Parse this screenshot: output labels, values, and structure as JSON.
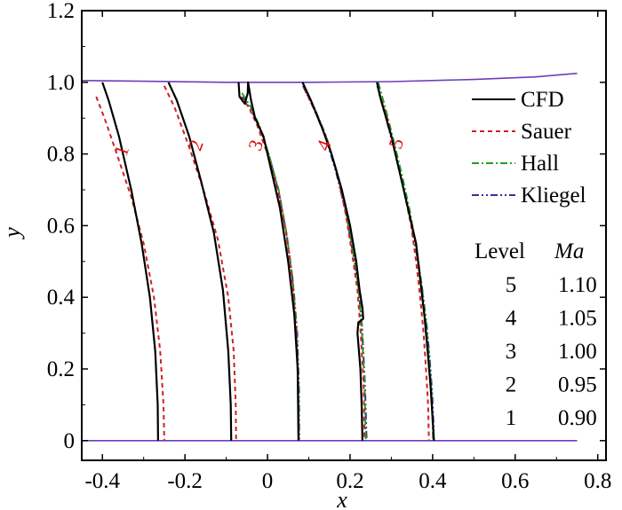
{
  "chart_data": {
    "type": "line",
    "title": "",
    "xlabel": "x",
    "ylabel": "y",
    "xlim": [
      -0.45,
      0.82
    ],
    "ylim": [
      -0.055,
      1.2
    ],
    "xticks": [
      -0.4,
      -0.2,
      0,
      0.2,
      0.4,
      0.6,
      0.8
    ],
    "xtick_labels": [
      "-0.4",
      "-0.2",
      "0",
      "0.2",
      "0.4",
      "0.6",
      "0.8"
    ],
    "yticks": [
      0,
      0.2,
      0.4,
      0.6,
      0.8,
      1.0,
      1.2
    ],
    "ytick_labels": [
      "0",
      "0.2",
      "0.4",
      "0.6",
      "0.8",
      "1.0",
      "1.2"
    ],
    "walls": {
      "color": "#6a3fb8",
      "lower": [
        [
          -0.45,
          0.0
        ],
        [
          0.75,
          0.0
        ]
      ],
      "upper": [
        [
          -0.45,
          1.005
        ],
        [
          -0.3,
          1.003
        ],
        [
          -0.1,
          1.0
        ],
        [
          0.1,
          1.0
        ],
        [
          0.3,
          1.002
        ],
        [
          0.5,
          1.008
        ],
        [
          0.65,
          1.015
        ],
        [
          0.75,
          1.025
        ]
      ]
    },
    "legend": [
      {
        "label": "CFD",
        "color": "#000000",
        "dash": "none"
      },
      {
        "label": "Sauer",
        "color": "#d02020",
        "dash": "5,4"
      },
      {
        "label": "Hall",
        "color": "#20a020",
        "dash": "8,3,2,3"
      },
      {
        "label": "Kliegel",
        "color": "#3030a0",
        "dash": "8,3,2,3,2,3"
      }
    ],
    "level_table": {
      "header_level": "Level",
      "header_value": "Ma",
      "rows": [
        {
          "level": "5",
          "ma": "1.10"
        },
        {
          "level": "4",
          "ma": "1.05"
        },
        {
          "level": "3",
          "ma": "1.00"
        },
        {
          "level": "2",
          "ma": "0.95"
        },
        {
          "level": "1",
          "ma": "0.90"
        }
      ]
    },
    "contour_labels": [
      {
        "text": "1",
        "x": -0.355,
        "y": 0.81
      },
      {
        "text": "2",
        "x": -0.175,
        "y": 0.825
      },
      {
        "text": "3",
        "x": -0.03,
        "y": 0.825
      },
      {
        "text": "4",
        "x": 0.135,
        "y": 0.825
      },
      {
        "text": "5",
        "x": 0.31,
        "y": 0.83
      }
    ],
    "series": [
      {
        "name": "CFD",
        "level": "1",
        "points": [
          [
            -0.4,
            1.0
          ],
          [
            -0.385,
            0.95
          ],
          [
            -0.36,
            0.85
          ],
          [
            -0.33,
            0.7
          ],
          [
            -0.305,
            0.55
          ],
          [
            -0.285,
            0.4
          ],
          [
            -0.272,
            0.25
          ],
          [
            -0.266,
            0.1
          ],
          [
            -0.265,
            0.0
          ]
        ]
      },
      {
        "name": "Sauer",
        "level": "1",
        "points": [
          [
            -0.415,
            0.96
          ],
          [
            -0.395,
            0.9
          ],
          [
            -0.365,
            0.8
          ],
          [
            -0.33,
            0.68
          ],
          [
            -0.3,
            0.55
          ],
          [
            -0.275,
            0.4
          ],
          [
            -0.26,
            0.25
          ],
          [
            -0.252,
            0.1
          ],
          [
            -0.25,
            0.0
          ]
        ]
      },
      {
        "name": "CFD",
        "level": "2",
        "points": [
          [
            -0.24,
            1.0
          ],
          [
            -0.22,
            0.95
          ],
          [
            -0.19,
            0.85
          ],
          [
            -0.16,
            0.72
          ],
          [
            -0.13,
            0.58
          ],
          [
            -0.108,
            0.42
          ],
          [
            -0.095,
            0.25
          ],
          [
            -0.089,
            0.1
          ],
          [
            -0.088,
            0.0
          ]
        ]
      },
      {
        "name": "Sauer",
        "level": "2",
        "points": [
          [
            -0.25,
            0.99
          ],
          [
            -0.225,
            0.93
          ],
          [
            -0.19,
            0.82
          ],
          [
            -0.155,
            0.7
          ],
          [
            -0.12,
            0.56
          ],
          [
            -0.095,
            0.4
          ],
          [
            -0.082,
            0.25
          ],
          [
            -0.077,
            0.1
          ],
          [
            -0.076,
            0.0
          ]
        ]
      },
      {
        "name": "CFD",
        "level": "3",
        "points": [
          [
            -0.07,
            1.0
          ],
          [
            -0.068,
            0.96
          ],
          [
            -0.055,
            0.94
          ],
          [
            -0.048,
            0.97
          ],
          [
            -0.047,
            1.0
          ],
          [
            -0.04,
            0.95
          ],
          [
            -0.03,
            0.9
          ],
          [
            -0.01,
            0.85
          ],
          [
            0.01,
            0.75
          ],
          [
            0.03,
            0.65
          ],
          [
            0.05,
            0.5
          ],
          [
            0.065,
            0.35
          ],
          [
            0.073,
            0.2
          ],
          [
            0.075,
            0.0
          ]
        ]
      },
      {
        "name": "Sauer",
        "level": "3",
        "points": [
          [
            -0.065,
            0.96
          ],
          [
            -0.045,
            0.93
          ],
          [
            -0.025,
            0.88
          ],
          [
            0.0,
            0.8
          ],
          [
            0.025,
            0.7
          ],
          [
            0.045,
            0.58
          ],
          [
            0.06,
            0.45
          ],
          [
            0.07,
            0.3
          ],
          [
            0.074,
            0.15
          ],
          [
            0.075,
            0.0
          ]
        ]
      },
      {
        "name": "Hall",
        "level": "3",
        "points": [
          [
            -0.062,
            0.97
          ],
          [
            -0.04,
            0.93
          ],
          [
            -0.02,
            0.88
          ],
          [
            0.003,
            0.8
          ],
          [
            0.027,
            0.7
          ],
          [
            0.046,
            0.58
          ],
          [
            0.061,
            0.45
          ],
          [
            0.071,
            0.3
          ],
          [
            0.075,
            0.15
          ],
          [
            0.076,
            0.0
          ]
        ]
      },
      {
        "name": "Kliegel",
        "level": "3",
        "points": [
          [
            -0.06,
            0.96
          ],
          [
            -0.038,
            0.92
          ],
          [
            -0.018,
            0.87
          ],
          [
            0.005,
            0.79
          ],
          [
            0.028,
            0.69
          ],
          [
            0.047,
            0.57
          ],
          [
            0.062,
            0.44
          ],
          [
            0.072,
            0.3
          ],
          [
            0.076,
            0.15
          ],
          [
            0.077,
            0.0
          ]
        ]
      },
      {
        "name": "CFD",
        "level": "4",
        "points": [
          [
            0.085,
            1.0
          ],
          [
            0.105,
            0.95
          ],
          [
            0.13,
            0.88
          ],
          [
            0.155,
            0.8
          ],
          [
            0.18,
            0.7
          ],
          [
            0.2,
            0.6
          ],
          [
            0.215,
            0.5
          ],
          [
            0.223,
            0.42
          ],
          [
            0.23,
            0.37
          ],
          [
            0.232,
            0.34
          ],
          [
            0.22,
            0.33
          ],
          [
            0.218,
            0.3
          ],
          [
            0.225,
            0.2
          ],
          [
            0.228,
            0.1
          ],
          [
            0.23,
            0.0
          ]
        ]
      },
      {
        "name": "Sauer",
        "level": "4",
        "points": [
          [
            0.09,
            0.98
          ],
          [
            0.115,
            0.92
          ],
          [
            0.145,
            0.84
          ],
          [
            0.17,
            0.74
          ],
          [
            0.19,
            0.63
          ],
          [
            0.205,
            0.52
          ],
          [
            0.218,
            0.42
          ],
          [
            0.226,
            0.3
          ],
          [
            0.233,
            0.15
          ],
          [
            0.235,
            0.0
          ]
        ]
      },
      {
        "name": "Hall",
        "level": "4",
        "points": [
          [
            0.088,
            0.99
          ],
          [
            0.113,
            0.93
          ],
          [
            0.142,
            0.85
          ],
          [
            0.168,
            0.75
          ],
          [
            0.19,
            0.64
          ],
          [
            0.207,
            0.53
          ],
          [
            0.22,
            0.43
          ],
          [
            0.228,
            0.32
          ],
          [
            0.235,
            0.16
          ],
          [
            0.238,
            0.0
          ]
        ]
      },
      {
        "name": "Kliegel",
        "level": "4",
        "points": [
          [
            0.086,
            0.99
          ],
          [
            0.111,
            0.93
          ],
          [
            0.14,
            0.85
          ],
          [
            0.166,
            0.75
          ],
          [
            0.189,
            0.64
          ],
          [
            0.206,
            0.53
          ],
          [
            0.22,
            0.43
          ],
          [
            0.229,
            0.32
          ],
          [
            0.236,
            0.16
          ],
          [
            0.24,
            0.0
          ]
        ]
      },
      {
        "name": "CFD",
        "level": "5",
        "points": [
          [
            0.265,
            1.0
          ],
          [
            0.275,
            0.95
          ],
          [
            0.3,
            0.85
          ],
          [
            0.32,
            0.75
          ],
          [
            0.34,
            0.65
          ],
          [
            0.36,
            0.55
          ],
          [
            0.37,
            0.45
          ],
          [
            0.38,
            0.35
          ],
          [
            0.388,
            0.25
          ],
          [
            0.395,
            0.15
          ],
          [
            0.4,
            0.06
          ],
          [
            0.403,
            0.0
          ]
        ]
      },
      {
        "name": "Sauer",
        "level": "5",
        "points": [
          [
            0.27,
            0.97
          ],
          [
            0.29,
            0.9
          ],
          [
            0.31,
            0.8
          ],
          [
            0.33,
            0.7
          ],
          [
            0.348,
            0.6
          ],
          [
            0.36,
            0.5
          ],
          [
            0.37,
            0.4
          ],
          [
            0.378,
            0.3
          ],
          [
            0.384,
            0.2
          ],
          [
            0.389,
            0.1
          ],
          [
            0.391,
            0.0
          ]
        ]
      },
      {
        "name": "Hall",
        "level": "5",
        "points": [
          [
            0.268,
            1.0
          ],
          [
            0.285,
            0.93
          ],
          [
            0.305,
            0.84
          ],
          [
            0.326,
            0.74
          ],
          [
            0.345,
            0.64
          ],
          [
            0.36,
            0.54
          ],
          [
            0.373,
            0.44
          ],
          [
            0.383,
            0.34
          ],
          [
            0.391,
            0.24
          ],
          [
            0.397,
            0.14
          ],
          [
            0.4,
            0.05
          ],
          [
            0.401,
            0.0
          ]
        ]
      },
      {
        "name": "Kliegel",
        "level": "5",
        "points": [
          [
            0.266,
            0.99
          ],
          [
            0.283,
            0.92
          ],
          [
            0.303,
            0.83
          ],
          [
            0.324,
            0.73
          ],
          [
            0.344,
            0.63
          ],
          [
            0.36,
            0.53
          ],
          [
            0.374,
            0.43
          ],
          [
            0.385,
            0.33
          ],
          [
            0.393,
            0.23
          ],
          [
            0.399,
            0.13
          ],
          [
            0.402,
            0.05
          ],
          [
            0.403,
            0.0
          ]
        ]
      }
    ]
  }
}
